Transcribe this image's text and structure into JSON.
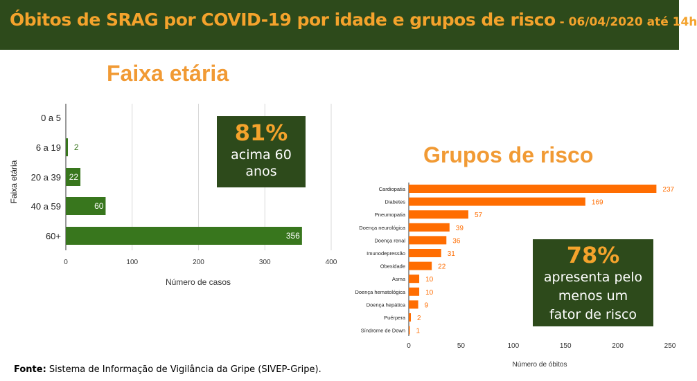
{
  "header": {
    "title": "Óbitos de SRAG por COVID-19 por idade e grupos de risco",
    "date": " - 06/04/2020 até 14h"
  },
  "age_section": {
    "title": "Faixa etária",
    "callout_pct": "81%",
    "callout_line1": "acima 60",
    "callout_line2": "anos"
  },
  "risk_section": {
    "title": "Grupos de risco",
    "callout_pct": "78%",
    "callout_line1": "apresenta pelo",
    "callout_line2": "menos um",
    "callout_line3": "fator de risco"
  },
  "footer": {
    "label": "Fonte:",
    "text": " Sistema de Informação de Vigilância da Gripe (SIVEP-Gripe)."
  },
  "colors": {
    "header_bg": "#2d4a1b",
    "accent_orange": "#f19a34",
    "age_bar": "#38761d",
    "risk_bar": "#ff6d01"
  },
  "chart_data": [
    {
      "type": "bar",
      "orientation": "horizontal",
      "title": "Faixa etária",
      "categories": [
        "0 a 5",
        "6 a 19",
        "20 a 39",
        "40 a 59",
        "60+"
      ],
      "values": [
        0,
        2,
        22,
        60,
        356
      ],
      "xlabel": "Número de casos",
      "ylabel": "Faixa etária",
      "xlim": [
        0,
        400
      ],
      "xticks": [
        0,
        100,
        200,
        300,
        400
      ],
      "grid": true
    },
    {
      "type": "bar",
      "orientation": "horizontal",
      "title": "Grupos de risco",
      "categories": [
        "Cardiopatia",
        "Diabetes",
        "Pneumopatia",
        "Doença neurológica",
        "Doença renal",
        "Imunodepressão",
        "Obesidade",
        "Asma",
        "Doença hematológica",
        "Doença hepática",
        "Puérpera",
        "Síndrome de Down"
      ],
      "values": [
        237,
        169,
        57,
        39,
        36,
        31,
        22,
        10,
        10,
        9,
        2,
        1
      ],
      "xlabel": "Número de óbitos",
      "ylabel": "",
      "xlim": [
        0,
        250
      ],
      "xticks": [
        0,
        50,
        100,
        150,
        200,
        250
      ],
      "grid": false
    }
  ]
}
